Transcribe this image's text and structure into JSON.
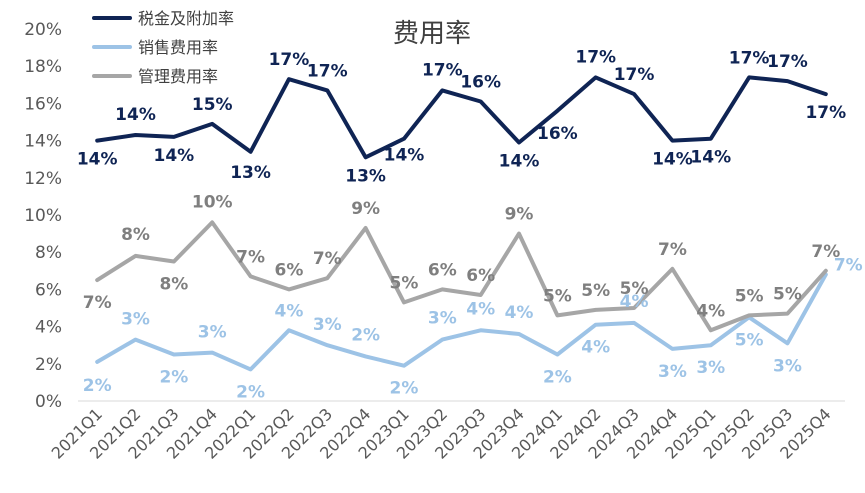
{
  "chart_data": {
    "type": "line",
    "title": "费用率",
    "xlabel": "",
    "ylabel": "",
    "ylim": [
      0,
      20
    ],
    "yticks": [
      "0%",
      "2%",
      "4%",
      "6%",
      "8%",
      "10%",
      "12%",
      "14%",
      "16%",
      "18%",
      "20%"
    ],
    "grid": false,
    "legend_position": "top-left",
    "categories": [
      "2021Q1",
      "2021Q2",
      "2021Q3",
      "2021Q4",
      "2022Q1",
      "2022Q2",
      "2022Q3",
      "2022Q4",
      "2023Q1",
      "2023Q2",
      "2023Q3",
      "2023Q4",
      "2024Q1",
      "2024Q2",
      "2024Q3",
      "2024Q4",
      "2025Q1",
      "2025Q2",
      "2025Q3",
      "2025Q4"
    ],
    "series": [
      {
        "name": "税金及附加率",
        "color": "#0f2454",
        "values": [
          14.0,
          14.3,
          14.2,
          14.9,
          13.4,
          17.3,
          16.7,
          13.1,
          14.1,
          16.7,
          16.1,
          13.9,
          15.6,
          17.4,
          16.5,
          14.0,
          14.1,
          17.4,
          17.2,
          16.5
        ],
        "labels": [
          "14%",
          "14%",
          "14%",
          "15%",
          "13%",
          "17%",
          "17%",
          "13%",
          "14%",
          "17%",
          "16%",
          "14%",
          "16%",
          "17%",
          "17%",
          "14%",
          "14%",
          "17%",
          "17%",
          "17%"
        ]
      },
      {
        "name": "销售费用率",
        "color": "#9dc3e6",
        "values": [
          2.1,
          3.3,
          2.5,
          2.6,
          1.7,
          3.8,
          3.0,
          2.4,
          1.9,
          3.3,
          3.8,
          3.6,
          2.5,
          4.1,
          4.2,
          2.8,
          3.0,
          4.5,
          3.1,
          6.8
        ],
        "labels": [
          "2%",
          "3%",
          "2%",
          "3%",
          "2%",
          "4%",
          "3%",
          "2%",
          "2%",
          "3%",
          "4%",
          "4%",
          "2%",
          "4%",
          "4%",
          "3%",
          "3%",
          "5%",
          "3%",
          "7%"
        ]
      },
      {
        "name": "管理费用率",
        "color": "#a6a6a6",
        "values": [
          6.5,
          7.8,
          7.5,
          9.6,
          6.7,
          6.0,
          6.6,
          9.3,
          5.3,
          6.0,
          5.7,
          9.0,
          4.6,
          4.9,
          5.0,
          7.1,
          3.8,
          4.6,
          4.7,
          7.0
        ],
        "labels": [
          "7%",
          "8%",
          "8%",
          "10%",
          "7%",
          "6%",
          "7%",
          "9%",
          "5%",
          "6%",
          "6%",
          "9%",
          "5%",
          "5%",
          "5%",
          "7%",
          "4%",
          "5%",
          "5%",
          "7%"
        ]
      }
    ]
  }
}
